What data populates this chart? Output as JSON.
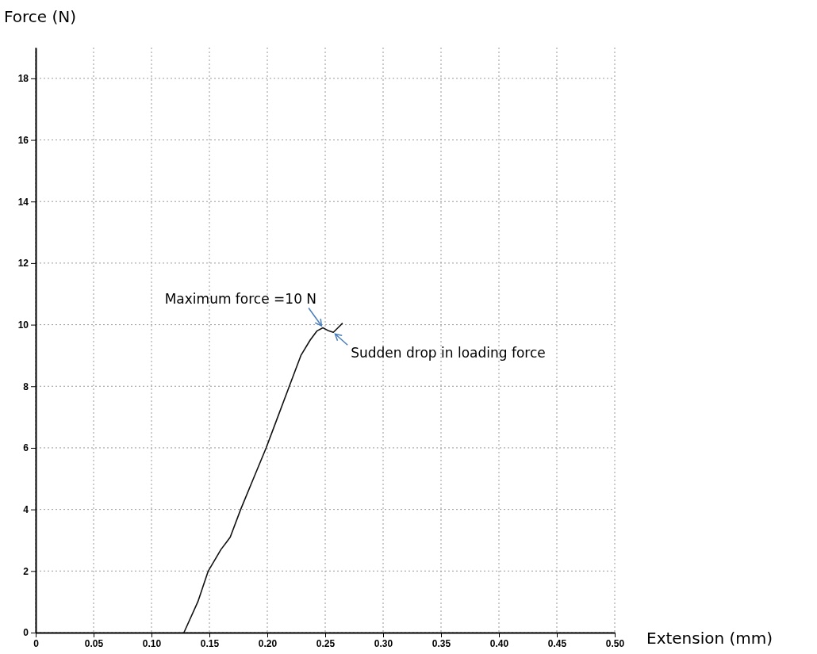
{
  "chart_data": {
    "type": "line",
    "xlabel": "Extension (mm)",
    "ylabel": "Force (N)",
    "x": [
      0.128,
      0.14,
      0.149,
      0.16,
      0.165,
      0.168,
      0.177,
      0.188,
      0.199,
      0.209,
      0.219,
      0.229,
      0.237,
      0.243,
      0.248,
      0.253,
      0.257,
      0.261,
      0.265
    ],
    "series": [
      {
        "color": "#111111",
        "values": [
          0,
          1.0,
          2,
          2.7,
          2.95,
          3.1,
          4,
          5,
          6,
          7,
          8,
          9,
          9.5,
          9.8,
          9.9,
          9.8,
          9.75,
          9.9,
          10.05
        ]
      }
    ],
    "xlim": [
      0,
      0.5
    ],
    "xticks": [
      0,
      {
        "value": 0.05,
        "label": "0.05"
      },
      {
        "value": 0.1,
        "label": "0.10"
      },
      {
        "value": 0.15,
        "label": "0.15"
      },
      {
        "value": 0.2,
        "label": "0.20"
      },
      {
        "value": 0.25,
        "label": "0.25"
      },
      {
        "value": 0.3,
        "label": "0.30"
      },
      {
        "value": 0.35,
        "label": "0.35"
      },
      {
        "value": 0.4,
        "label": "0.40"
      },
      {
        "value": 0.45,
        "label": "0.45"
      },
      {
        "value": 0.5,
        "label": "0.50"
      }
    ],
    "ylim": [
      0,
      19
    ],
    "yticks": [
      0,
      2,
      4,
      6,
      8,
      10,
      12,
      14,
      16,
      18
    ],
    "grid": true,
    "marker": "none",
    "line_style": "solid",
    "annotations": [
      {
        "text": "Maximum force =10 N",
        "x": 0.248,
        "y": 9.9
      },
      {
        "text": "Sudden drop in loading force",
        "x": 0.257,
        "y": 9.75
      }
    ]
  }
}
